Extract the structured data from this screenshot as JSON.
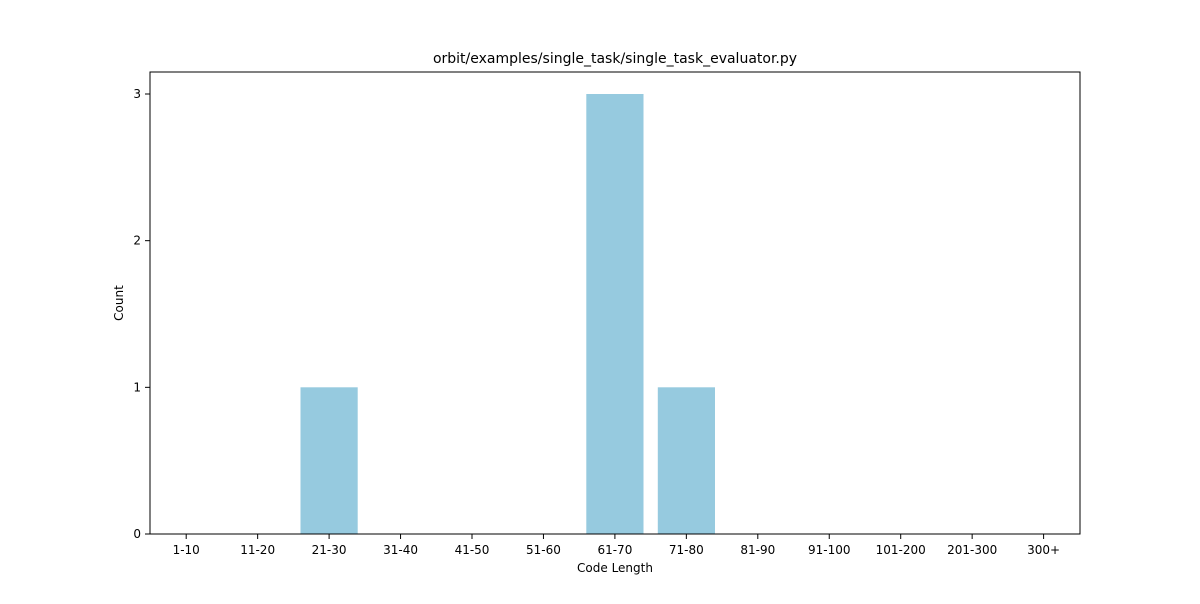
{
  "chart_data": {
    "type": "bar",
    "title": "orbit/examples/single_task/single_task_evaluator.py",
    "xlabel": "Code Length",
    "ylabel": "Count",
    "categories": [
      "1-10",
      "11-20",
      "21-30",
      "31-40",
      "41-50",
      "51-60",
      "61-70",
      "71-80",
      "81-90",
      "91-100",
      "101-200",
      "201-300",
      "300+"
    ],
    "values": [
      0,
      0,
      1,
      0,
      0,
      0,
      3,
      1,
      0,
      0,
      0,
      0,
      0
    ],
    "ylim": [
      0,
      3.15
    ],
    "yticks": [
      0,
      1,
      2,
      3
    ],
    "grid": false,
    "bar_color": "#96cadf"
  }
}
